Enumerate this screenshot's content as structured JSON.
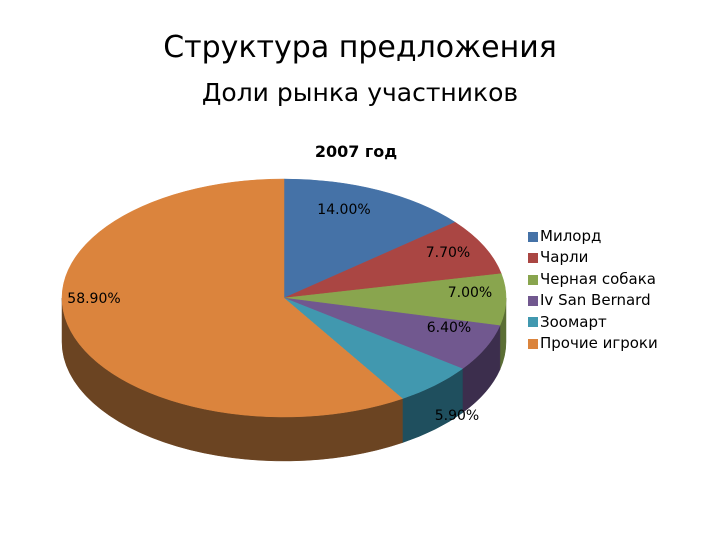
{
  "slide": {
    "title": "Структура предложения",
    "subtitle": "Доли рынка участников"
  },
  "chart_data": {
    "type": "pie",
    "title": "2007 год",
    "legend_position": "right",
    "style": "3d-pie",
    "slices": [
      {
        "name": "Милорд",
        "value": 14.0,
        "label": "14.00%",
        "color": "#4572A7",
        "side_color": "#2E4C70"
      },
      {
        "name": "Чарли",
        "value": 7.7,
        "label": "7.70%",
        "color": "#AA4643",
        "side_color": "#722F2D"
      },
      {
        "name": "Черная собака",
        "value": 7.0,
        "label": "7.00%",
        "color": "#89A54E",
        "side_color": "#5B6E34"
      },
      {
        "name": "Iv San Bernard",
        "value": 6.4,
        "label": "6.40%",
        "color": "#71588F",
        "side_color": "#3C2E4D"
      },
      {
        "name": "Зоомарт",
        "value": 5.9,
        "label": "5.90%",
        "color": "#4198AF",
        "side_color": "#1F4F5E"
      },
      {
        "name": "Прочие игроки",
        "value": 58.9,
        "label": "58.90%",
        "color": "#DB843D",
        "side_color": "#6B4422"
      }
    ]
  }
}
